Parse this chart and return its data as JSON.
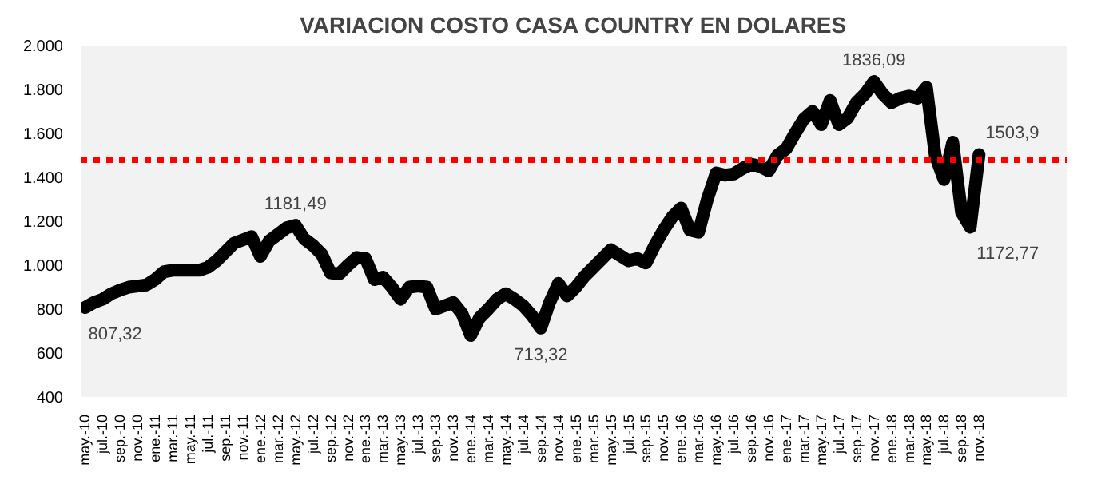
{
  "chart_data": {
    "type": "line",
    "title": "VARIACION COSTO CASA COUNTRY EN DOLARES",
    "categories": [
      "may.-10",
      null,
      "jul.-10",
      null,
      "sep.-10",
      null,
      "nov.-10",
      null,
      "ene.-11",
      null,
      "mar.-11",
      null,
      "may.-11",
      null,
      "jul.-11",
      null,
      "sep.-11",
      null,
      "nov.-11",
      null,
      "ene.-12",
      null,
      "mar.-12",
      null,
      "may.-12",
      null,
      "jul.-12",
      null,
      "sep.-12",
      null,
      "nov.-12",
      null,
      "ene.-13",
      null,
      "mar.-13",
      null,
      "may.-13",
      null,
      "jul.-13",
      null,
      "sep.-13",
      null,
      "nov.-13",
      null,
      "ene.-14",
      null,
      "mar.-14",
      null,
      "may.-14",
      null,
      "jul.-14",
      null,
      "sep.-14",
      null,
      "nov.-14",
      null,
      "ene.-15",
      null,
      "mar.-15",
      null,
      "may.-15",
      null,
      "jul.-15",
      null,
      "sep.-15",
      null,
      "nov.-15",
      null,
      "ene.-16",
      null,
      "mar.-16",
      null,
      "may.-16",
      null,
      "jul.-16",
      null,
      "sep.-16",
      null,
      "nov.-16",
      null,
      "ene.-17",
      null,
      "mar.-17",
      null,
      "may.-17",
      null,
      "jul.-17",
      null,
      "sep.-17",
      null,
      "nov.-17",
      null,
      "ene.-18",
      null,
      "mar.-18",
      null,
      "may.-18",
      null,
      "jul.-18",
      null,
      "sep.-18",
      null,
      "nov.-18"
    ],
    "series": [
      {
        "color": "#000000",
        "values": [
          807.32,
          830,
          845,
          870,
          887,
          900,
          905,
          910,
          935,
          970,
          977,
          977,
          977,
          977,
          990,
          1020,
          1060,
          1100,
          1115,
          1130,
          1040,
          1110,
          1140,
          1170,
          1181.49,
          1120,
          1090,
          1050,
          965,
          960,
          1000,
          1035,
          1030,
          935,
          945,
          900,
          845,
          900,
          905,
          900,
          800,
          815,
          830,
          780,
          680,
          760,
          800,
          845,
          870,
          845,
          815,
          770,
          713.32,
          830,
          917,
          860,
          900,
          950,
          990,
          1030,
          1070,
          1045,
          1020,
          1030,
          1010,
          1090,
          1160,
          1220,
          1260,
          1160,
          1150,
          1300,
          1420,
          1410,
          1415,
          1440,
          1460,
          1450,
          1430,
          1500,
          1530,
          1600,
          1665,
          1700,
          1640,
          1750,
          1640,
          1670,
          1740,
          1780,
          1836.09,
          1780,
          1740,
          1760,
          1770,
          1760,
          1810,
          1500,
          1390,
          1560,
          1240,
          1172.77,
          1503.9
        ],
        "value_labels": [
          "807,32",
          null,
          null,
          null,
          null,
          null,
          null,
          null,
          null,
          null,
          null,
          null,
          null,
          null,
          null,
          null,
          null,
          null,
          null,
          null,
          null,
          null,
          null,
          null,
          "1181,49",
          null,
          null,
          null,
          null,
          null,
          null,
          null,
          null,
          null,
          null,
          null,
          null,
          null,
          null,
          null,
          null,
          null,
          null,
          null,
          null,
          null,
          null,
          null,
          null,
          null,
          null,
          null,
          "713,32",
          null,
          null,
          null,
          null,
          null,
          null,
          null,
          null,
          null,
          null,
          null,
          null,
          null,
          null,
          null,
          null,
          null,
          null,
          null,
          null,
          null,
          null,
          null,
          null,
          null,
          null,
          null,
          null,
          null,
          null,
          null,
          null,
          null,
          null,
          null,
          null,
          null,
          "1836,09",
          null,
          null,
          null,
          null,
          null,
          null,
          null,
          null,
          null,
          null,
          "1172,77",
          "1503,9"
        ]
      }
    ],
    "ylim": [
      400,
      2000
    ],
    "yticks": [
      {
        "value": 400,
        "label": "400"
      },
      {
        "value": 600,
        "label": "600"
      },
      {
        "value": 800,
        "label": "800"
      },
      {
        "value": 1000,
        "label": "1.000"
      },
      {
        "value": 1200,
        "label": "1.200"
      },
      {
        "value": 1400,
        "label": "1.400"
      },
      {
        "value": 1600,
        "label": "1.600"
      },
      {
        "value": 1800,
        "label": "1.800"
      },
      {
        "value": 2000,
        "label": "2.000"
      }
    ],
    "ref_lines": [
      {
        "axis": "y",
        "value": 1480,
        "color": "#ff0000",
        "line_style": "dotted"
      }
    ],
    "grid": false,
    "line_style": "solid"
  }
}
